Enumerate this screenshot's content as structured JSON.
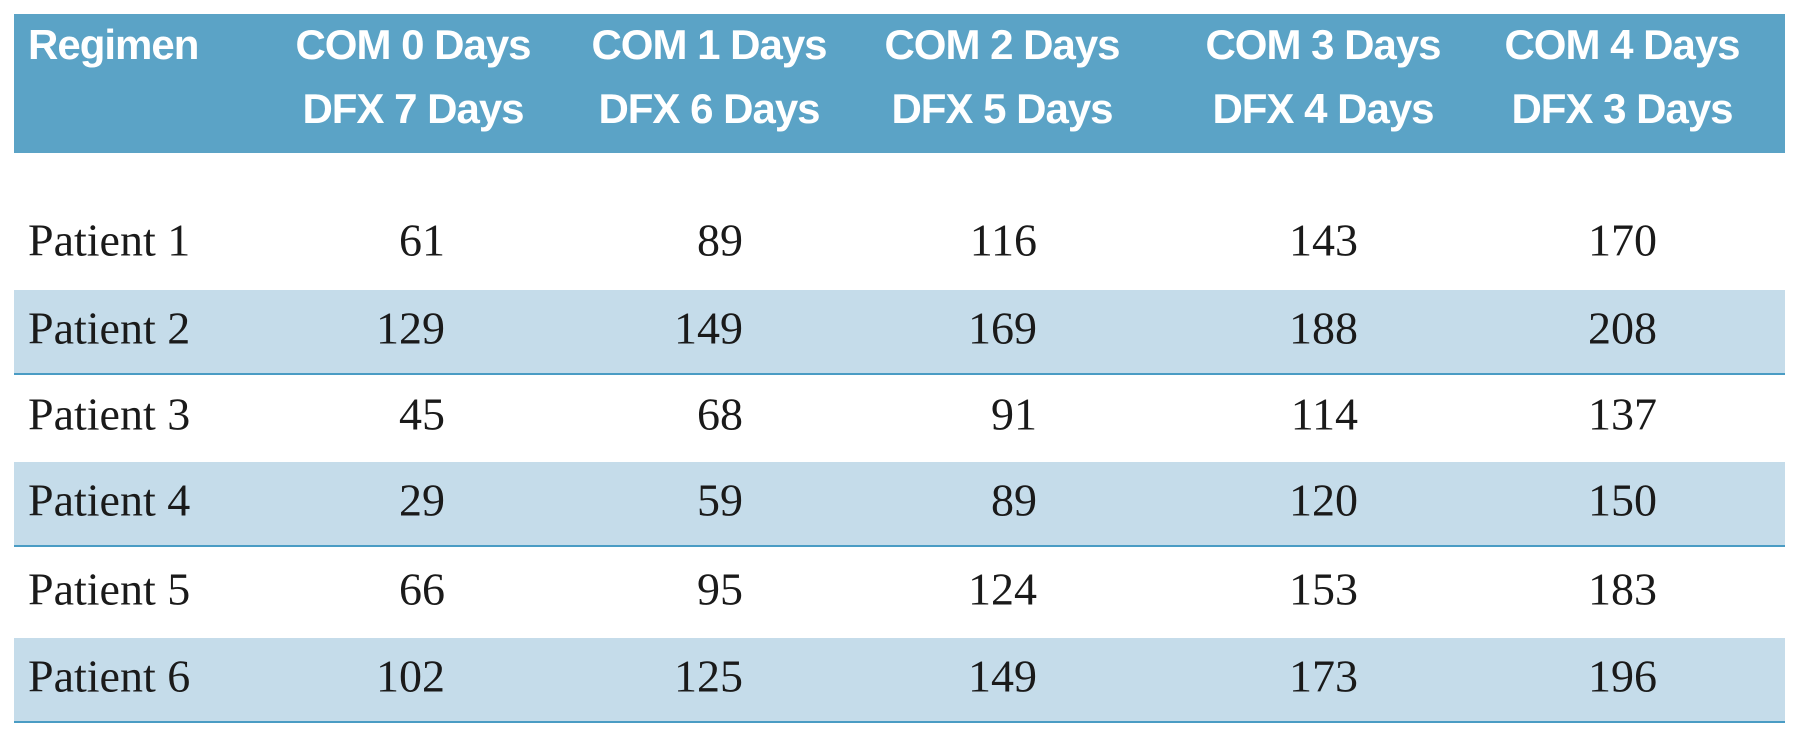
{
  "table": {
    "header": [
      [
        "Regimen"
      ],
      [
        "COM 0 Days",
        "DFX 7 Days"
      ],
      [
        "COM 1 Days",
        "DFX 6 Days"
      ],
      [
        "COM 2 Days",
        "DFX 5 Days"
      ],
      [
        "COM 3 Days",
        "DFX 4 Days"
      ],
      [
        "COM 4 Days",
        "DFX 3 Days"
      ]
    ],
    "rows": [
      [
        "Patient 1",
        61,
        89,
        116,
        143,
        170
      ],
      [
        "Patient 2",
        129,
        149,
        169,
        188,
        208
      ],
      [
        "Patient 3",
        45,
        68,
        91,
        114,
        137
      ],
      [
        "Patient 4",
        29,
        59,
        89,
        120,
        150
      ],
      [
        "Patient 5",
        66,
        95,
        124,
        153,
        183
      ],
      [
        "Patient 6",
        102,
        125,
        149,
        173,
        196
      ]
    ]
  }
}
